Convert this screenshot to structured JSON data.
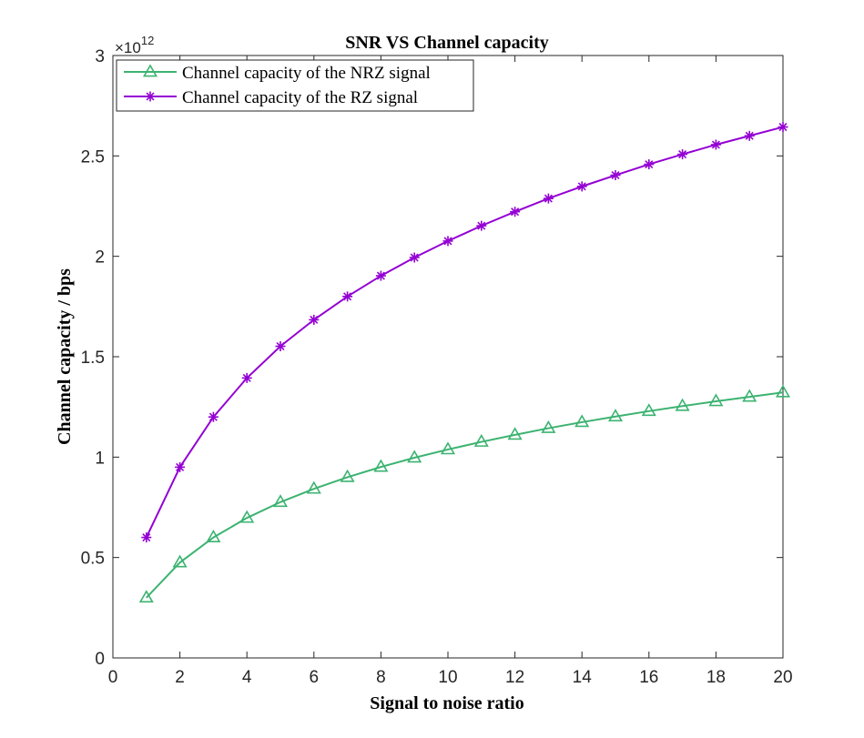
{
  "chart_data": {
    "type": "line",
    "title": "SNR VS Channel capacity",
    "xlabel": "Signal to noise ratio",
    "ylabel": "Channel capacity / bps",
    "y_exponent_base": "×10",
    "y_exponent_power": "12",
    "xlim": [
      0,
      20
    ],
    "ylim": [
      0,
      3
    ],
    "x_ticks": [
      0,
      2,
      4,
      6,
      8,
      10,
      12,
      14,
      16,
      18,
      20
    ],
    "y_ticks": [
      0,
      0.5,
      1,
      1.5,
      2,
      2.5,
      3
    ],
    "y_tick_labels": [
      "0",
      "0.5",
      "1",
      "1.5",
      "2",
      "2.5",
      "3"
    ],
    "grid": false,
    "legend_position": "top-left",
    "x": [
      1,
      2,
      3,
      4,
      5,
      6,
      7,
      8,
      9,
      10,
      11,
      12,
      13,
      14,
      15,
      16,
      17,
      18,
      19,
      20
    ],
    "series": [
      {
        "name": "Channel capacity of the NRZ signal",
        "color": "#3cb371",
        "marker": "triangle",
        "values": [
          0.3,
          0.475,
          0.6,
          0.697,
          0.776,
          0.842,
          0.9,
          0.951,
          0.997,
          1.038,
          1.076,
          1.111,
          1.144,
          1.174,
          1.202,
          1.229,
          1.254,
          1.278,
          1.3,
          1.322
        ]
      },
      {
        "name": "Channel capacity of the RZ signal",
        "color": "#9400d3",
        "marker": "asterisk",
        "values": [
          0.6,
          0.95,
          1.2,
          1.394,
          1.552,
          1.684,
          1.8,
          1.903,
          1.994,
          2.076,
          2.152,
          2.222,
          2.288,
          2.348,
          2.404,
          2.458,
          2.508,
          2.556,
          2.6,
          2.644
        ]
      }
    ]
  }
}
